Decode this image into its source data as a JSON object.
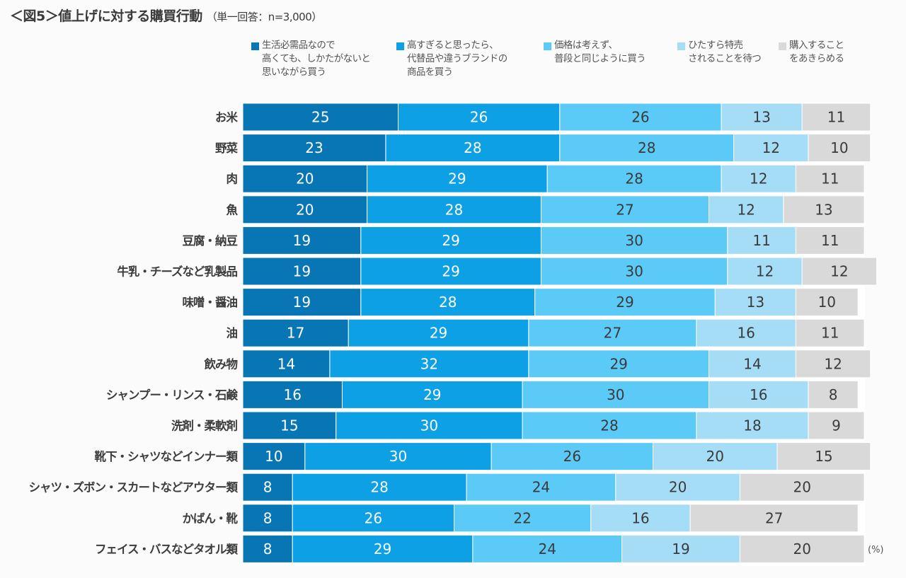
{
  "title": "＜図5＞値上げに対する購買行動",
  "subtitle": "（単一回答：n=3,000）",
  "unit": "(%)",
  "colors": [
    "#0876b5",
    "#0ea0e4",
    "#5ccaf6",
    "#a5ddf7",
    "#d9d9d9"
  ],
  "chart_data": {
    "type": "bar",
    "orientation": "horizontal",
    "stacked": true,
    "xlim": [
      0,
      100
    ],
    "legend_position": "top",
    "categories": [
      "お米",
      "野菜",
      "肉",
      "魚",
      "豆腐・納豆",
      "牛乳・チーズなど乳製品",
      "味噌・醤油",
      "油",
      "飲み物",
      "シャンプー・リンス・石鹸",
      "洗剤・柔軟剤",
      "靴下・シャツなどインナー類",
      "シャツ・ズボン・スカートなどアウター類",
      "かばん・靴",
      "フェイス・バスなどタオル類"
    ],
    "series": [
      {
        "name": "生活必需品なので\n高くても、しかたがないと\n思いながら買う",
        "values": [
          25,
          23,
          20,
          20,
          19,
          19,
          19,
          17,
          14,
          16,
          15,
          10,
          8,
          8,
          8
        ]
      },
      {
        "name": "高すぎると思ったら、\n代替品や違うブランドの\n商品を買う",
        "values": [
          26,
          28,
          29,
          28,
          29,
          29,
          28,
          29,
          32,
          29,
          30,
          30,
          28,
          26,
          29
        ]
      },
      {
        "name": "価格は考えず、\n普段と同じように買う",
        "values": [
          26,
          28,
          28,
          27,
          30,
          30,
          29,
          27,
          29,
          30,
          28,
          26,
          24,
          22,
          24
        ]
      },
      {
        "name": "ひたすら特売\nされることを待つ",
        "values": [
          13,
          12,
          12,
          12,
          11,
          12,
          13,
          16,
          14,
          16,
          18,
          20,
          20,
          16,
          19
        ]
      },
      {
        "name": "購入すること\nをあきらめる",
        "values": [
          11,
          10,
          11,
          13,
          11,
          12,
          10,
          11,
          12,
          8,
          9,
          15,
          20,
          27,
          20
        ]
      }
    ]
  }
}
